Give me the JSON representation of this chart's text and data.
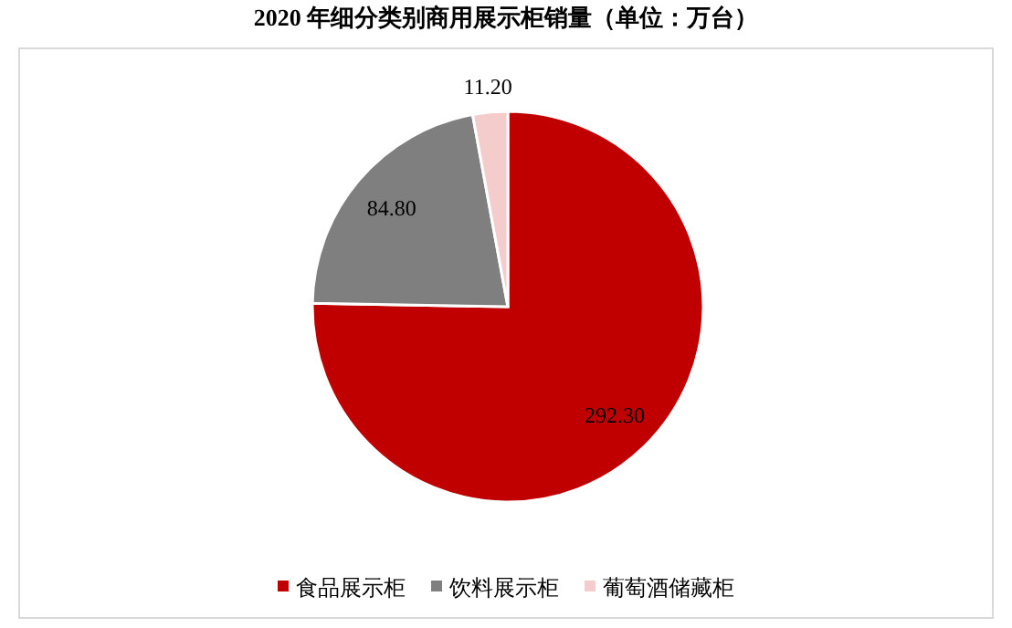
{
  "chart_data": {
    "type": "pie",
    "title": "2020 年细分类别商用展示柜销量（单位：万台）",
    "categories": [
      "食品展示柜",
      "饮料展示柜",
      "葡萄酒储藏柜"
    ],
    "values": [
      292.3,
      84.8,
      11.2
    ],
    "colors": [
      "#c00000",
      "#7f7f7f",
      "#f4cccc"
    ],
    "value_labels": [
      "292.30",
      "84.80",
      "11.20"
    ],
    "legend": "bottom"
  }
}
